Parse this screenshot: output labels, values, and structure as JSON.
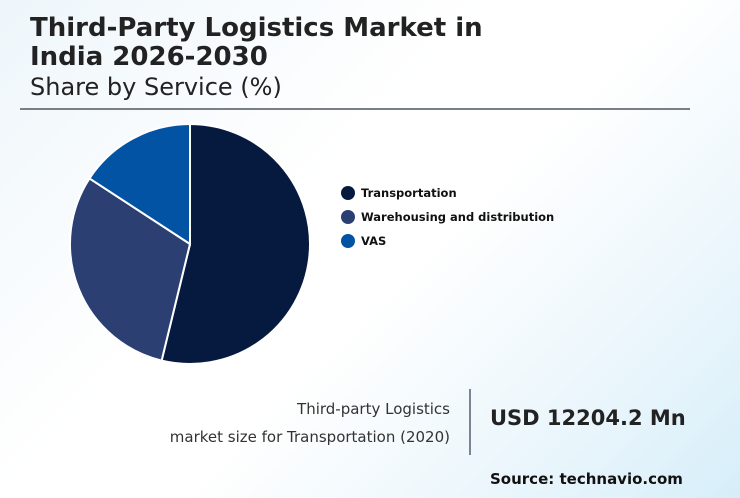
{
  "header": {
    "title_line1": "Third-Party Logistics Market in",
    "title_line2": "India 2026-2030",
    "subtitle": "Share by Service (%)"
  },
  "legend": [
    {
      "label": "Transportation",
      "color": "#061a40"
    },
    {
      "label": "Warehousing and distribution",
      "color": "#2b3f72"
    },
    {
      "label": "VAS",
      "color": "#0353a4"
    }
  ],
  "stat": {
    "label_line1": "Third-party Logistics",
    "label_line2": "market size for Transportation (2020)",
    "value": "USD 12204.2 Mn"
  },
  "source": "Source: technavio.com",
  "chart_data": {
    "type": "pie",
    "title": "Third-Party Logistics Market in India 2026-2030",
    "subtitle": "Share by Service (%)",
    "categories": [
      "Transportation",
      "Warehousing and distribution",
      "VAS"
    ],
    "values": [
      53.8,
      30.4,
      15.8
    ],
    "colors": [
      "#061a40",
      "#2b3f72",
      "#0353a4"
    ],
    "legend_position": "right",
    "start_angle": "12 o'clock, clockwise"
  }
}
